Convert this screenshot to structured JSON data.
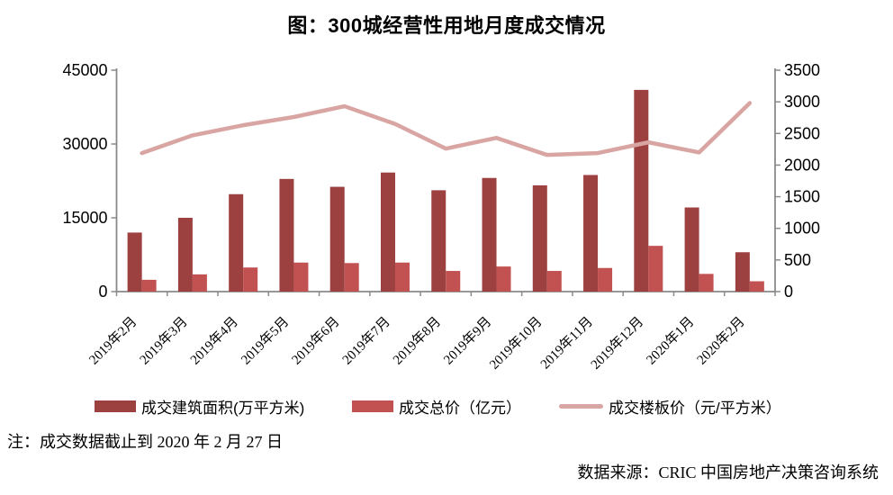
{
  "chart_data": {
    "type": "combo-bar-line",
    "title": "图：300城经营性用地月度成交情况",
    "categories": [
      "2019年2月",
      "2019年3月",
      "2019年4月",
      "2019年5月",
      "2019年6月",
      "2019年7月",
      "2019年8月",
      "2019年9月",
      "2019年10月",
      "2019年11月",
      "2019年12月",
      "2020年1月",
      "2020年2月"
    ],
    "series": [
      {
        "name": "成交建筑面积(万平方米)",
        "type": "bar",
        "axis": "left",
        "color": "#9d4040",
        "values": [
          12000,
          15000,
          19800,
          22900,
          21300,
          24200,
          20600,
          23100,
          21600,
          23700,
          41000,
          17100,
          8000
        ]
      },
      {
        "name": "成交总价（亿元）",
        "type": "bar",
        "axis": "left",
        "color": "#c25252",
        "values": [
          2400,
          3500,
          4900,
          5900,
          5800,
          5900,
          4200,
          5100,
          4200,
          4800,
          9300,
          3600,
          2100
        ]
      },
      {
        "name": "成交楼板价（元/平方米）",
        "type": "line",
        "axis": "right",
        "color": "#d9a5a2",
        "values": [
          2190,
          2470,
          2630,
          2760,
          2930,
          2650,
          2260,
          2430,
          2160,
          2190,
          2360,
          2200,
          2980
        ]
      }
    ],
    "left_axis": {
      "min": 0,
      "max": 45000,
      "tick_step": 15000
    },
    "right_axis": {
      "min": 0,
      "max": 3500,
      "tick_step": 500
    },
    "legend_position": "bottom",
    "grid": false,
    "axis_color": "#8a8a8a",
    "text_color": "#000000"
  },
  "note": "注：成交数据截止到 2020 年 2 月 27 日",
  "source": "数据来源：CRIC 中国房地产决策咨询系统"
}
